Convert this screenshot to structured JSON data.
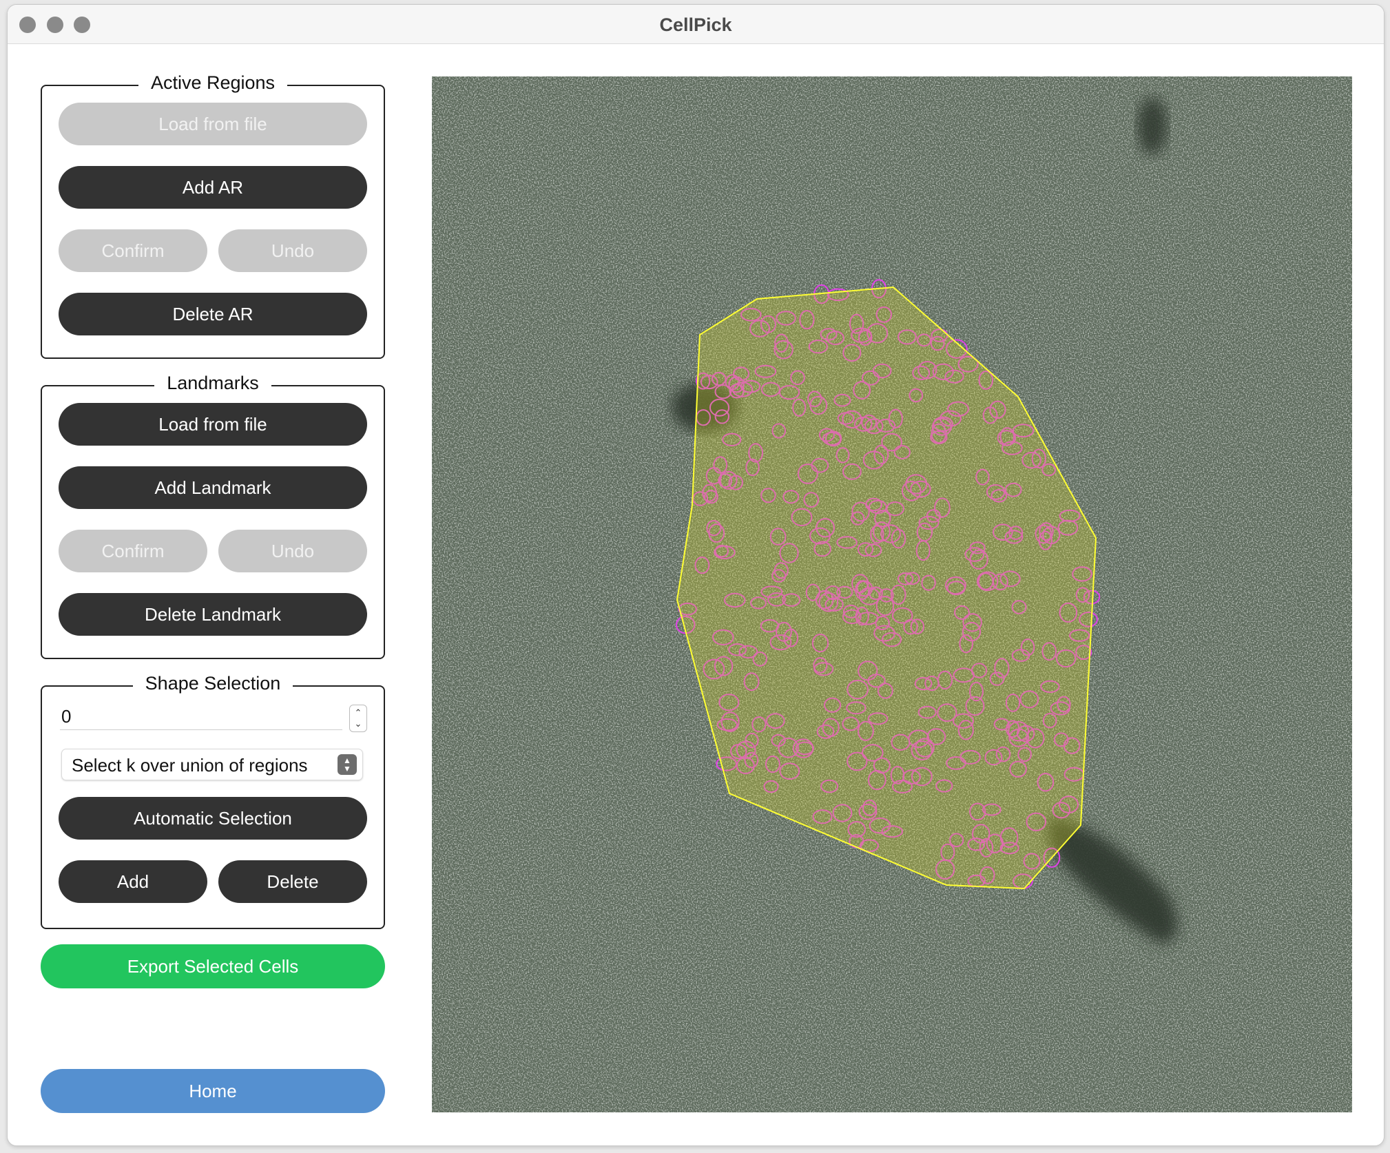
{
  "window": {
    "title": "CellPick"
  },
  "active_regions": {
    "title": "Active Regions",
    "load_label": "Load from file",
    "add_label": "Add AR",
    "confirm_label": "Confirm",
    "undo_label": "Undo",
    "delete_label": "Delete AR"
  },
  "landmarks": {
    "title": "Landmarks",
    "load_label": "Load from file",
    "add_label": "Add Landmark",
    "confirm_label": "Confirm",
    "undo_label": "Undo",
    "delete_label": "Delete Landmark"
  },
  "shape_selection": {
    "title": "Shape Selection",
    "k_value": "0",
    "mode_selected": "Select k over union of regions",
    "auto_label": "Automatic Selection",
    "add_label": "Add",
    "delete_label": "Delete"
  },
  "actions": {
    "export_label": "Export Selected Cells",
    "home_label": "Home"
  },
  "colors": {
    "export": "#22c55e",
    "home": "#5590d0",
    "region_outline": "#ffff33",
    "cell_outline": "#e040e8",
    "tissue": "#5f6d5e"
  }
}
